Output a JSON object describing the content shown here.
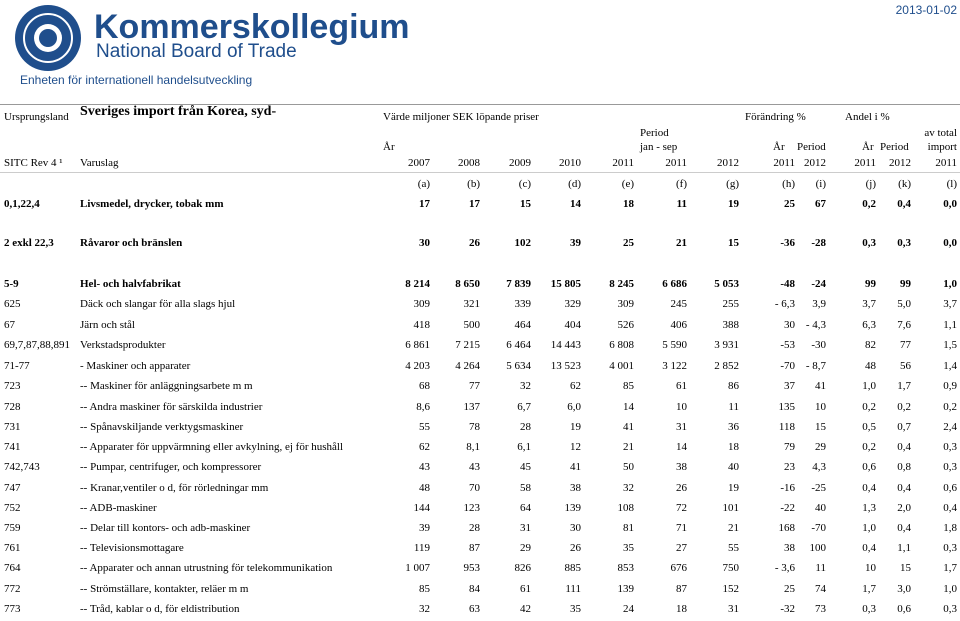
{
  "header": {
    "logo_title": "Kommerskollegium",
    "logo_subtitle": "National Board of Trade",
    "date": "2013-01-02",
    "unit": "Enheten för internationell handelsutveckling"
  },
  "table": {
    "head1": {
      "origin": "Ursprungsland",
      "title": "Sveriges import från Korea, syd-",
      "value": "Värde miljoner SEK löpande priser",
      "change": "Förändring %",
      "share": "Andel i %"
    },
    "head2": {
      "year": "År",
      "period": "Period",
      "period_range": "jan - sep",
      "change_year": "År",
      "change_period": "Period",
      "share_year": "År",
      "share_period": "Period",
      "share_of": "av total",
      "share_of2": "import"
    },
    "head3": {
      "code": "SITC Rev 4 ¹",
      "name": "Varuslag",
      "years": [
        "2007",
        "2008",
        "2009",
        "2010",
        "2011",
        "2011",
        "2012",
        "2011",
        "2012",
        "2011",
        "2012",
        "2011"
      ]
    },
    "letters": [
      "(a)",
      "(b)",
      "(c)",
      "(d)",
      "(e)",
      "(f)",
      "(g)",
      "(h)",
      "(i)",
      "(j)",
      "(k)",
      "(l)"
    ],
    "rows": [
      [
        "0,1,22,4",
        "Livsmedel, drycker, tobak mm",
        "17",
        "17",
        "15",
        "14",
        "18",
        "11",
        "19",
        "25",
        "67",
        "0,2",
        "0,4",
        "0,0"
      ],
      [
        "2 exkl 22,3",
        "Råvaror och bränslen",
        "30",
        "26",
        "102",
        "39",
        "25",
        "21",
        "15",
        "-36",
        "-28",
        "0,3",
        "0,3",
        "0,0"
      ],
      [
        "5-9",
        "Hel- och halvfabrikat",
        "8 214",
        "8 650",
        "7 839",
        "15 805",
        "8 245",
        "6 686",
        "5 053",
        "-48",
        "-24",
        "99",
        "99",
        "1,0"
      ],
      [
        "625",
        "Däck och slangar för alla slags hjul",
        "309",
        "321",
        "339",
        "329",
        "309",
        "245",
        "255",
        "- 6,3",
        "3,9",
        "3,7",
        "5,0",
        "3,7"
      ],
      [
        "67",
        "Järn och stål",
        "418",
        "500",
        "464",
        "404",
        "526",
        "406",
        "388",
        "30",
        "- 4,3",
        "6,3",
        "7,6",
        "1,1"
      ],
      [
        "69,7,87,88,891",
        "Verkstadsprodukter",
        "6 861",
        "7 215",
        "6 464",
        "14 443",
        "6 808",
        "5 590",
        "3 931",
        "-53",
        "-30",
        "82",
        "77",
        "1,5"
      ],
      [
        "71-77",
        "- Maskiner och apparater",
        "4 203",
        "4 264",
        "5 634",
        "13 523",
        "4 001",
        "3 122",
        "2 852",
        "-70",
        "- 8,7",
        "48",
        "56",
        "1,4"
      ],
      [
        "723",
        "-- Maskiner för anläggningsarbete m m",
        "68",
        "77",
        "32",
        "62",
        "85",
        "61",
        "86",
        "37",
        "41",
        "1,0",
        "1,7",
        "0,9"
      ],
      [
        "728",
        "-- Andra maskiner för särskilda industrier",
        "8,6",
        "137",
        "6,7",
        "6,0",
        "14",
        "10",
        "11",
        "135",
        "10",
        "0,2",
        "0,2",
        "0,2"
      ],
      [
        "731",
        "-- Spånavskiljande verktygsmaskiner",
        "55",
        "78",
        "28",
        "19",
        "41",
        "31",
        "36",
        "118",
        "15",
        "0,5",
        "0,7",
        "2,4"
      ],
      [
        "741",
        "-- Apparater för uppvärmning eller avkylning, ej för hushåll",
        "62",
        "8,1",
        "6,1",
        "12",
        "21",
        "14",
        "18",
        "79",
        "29",
        "0,2",
        "0,4",
        "0,3"
      ],
      [
        "742,743",
        "-- Pumpar, centrifuger, och kompressorer",
        "43",
        "43",
        "45",
        "41",
        "50",
        "38",
        "40",
        "23",
        "4,3",
        "0,6",
        "0,8",
        "0,3"
      ],
      [
        "747",
        "-- Kranar,ventiler o d, för rörledningar mm",
        "48",
        "70",
        "58",
        "38",
        "32",
        "26",
        "19",
        "-16",
        "-25",
        "0,4",
        "0,4",
        "0,6"
      ],
      [
        "752",
        "-- ADB-maskiner",
        "144",
        "123",
        "64",
        "139",
        "108",
        "72",
        "101",
        "-22",
        "40",
        "1,3",
        "2,0",
        "0,4"
      ],
      [
        "759",
        "-- Delar till kontors- och adb-maskiner",
        "39",
        "28",
        "31",
        "30",
        "81",
        "71",
        "21",
        "168",
        "-70",
        "1,0",
        "0,4",
        "1,8"
      ],
      [
        "761",
        "-- Televisionsmottagare",
        "119",
        "87",
        "29",
        "26",
        "35",
        "27",
        "55",
        "38",
        "100",
        "0,4",
        "1,1",
        "0,3"
      ],
      [
        "764",
        "-- Apparater och annan utrustning för telekommunikation",
        "1 007",
        "953",
        "826",
        "885",
        "853",
        "676",
        "750",
        "- 3,6",
        "11",
        "10",
        "15",
        "1,7"
      ],
      [
        "772",
        "-- Strömställare, kontakter, reläer m m",
        "85",
        "84",
        "61",
        "111",
        "139",
        "87",
        "152",
        "25",
        "74",
        "1,7",
        "3,0",
        "1,0"
      ],
      [
        "773",
        "-- Tråd, kablar o d, för eldistribution",
        "32",
        "63",
        "42",
        "35",
        "24",
        "18",
        "31",
        "-32",
        "73",
        "0,3",
        "0,6",
        "0,3"
      ]
    ]
  }
}
